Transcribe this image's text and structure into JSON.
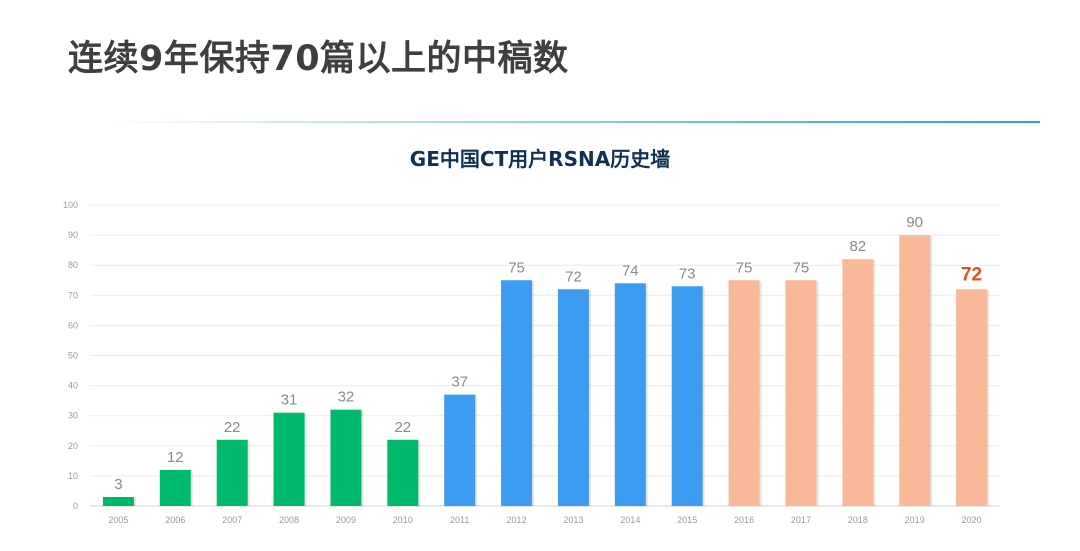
{
  "slide": {
    "title": "连续9年保持70篇以上的中稿数"
  },
  "chart_data": {
    "type": "bar",
    "title": "GE中国CT用户RSNA历史墙",
    "xlabel": "",
    "ylabel": "",
    "categories": [
      "2005",
      "2006",
      "2007",
      "2008",
      "2009",
      "2010",
      "2011",
      "2012",
      "2013",
      "2014",
      "2015",
      "2016",
      "2017",
      "2018",
      "2019",
      "2020"
    ],
    "values": [
      3,
      12,
      22,
      31,
      32,
      22,
      37,
      75,
      72,
      74,
      73,
      75,
      75,
      82,
      90,
      72
    ],
    "data_labels": [
      "3",
      "12",
      "22",
      "31",
      "32",
      "22",
      "37",
      "75",
      "72",
      "74",
      "73",
      "75",
      "75",
      "82",
      "90",
      "72"
    ],
    "bar_colors": [
      "#00b96b",
      "#00b96b",
      "#00b96b",
      "#00b96b",
      "#00b96b",
      "#00b96b",
      "#3b9cf2",
      "#3b9cf2",
      "#3b9cf2",
      "#3b9cf2",
      "#3b9cf2",
      "#f9b898",
      "#f9b898",
      "#f9b898",
      "#f9b898",
      "#f9b898"
    ],
    "highlight_index": 15,
    "highlight_label_color": "#d4561a",
    "ylim": [
      0,
      100
    ],
    "yticks": [
      0,
      10,
      20,
      30,
      40,
      50,
      60,
      70,
      80,
      90,
      100
    ],
    "grid": true,
    "legend": "none"
  }
}
